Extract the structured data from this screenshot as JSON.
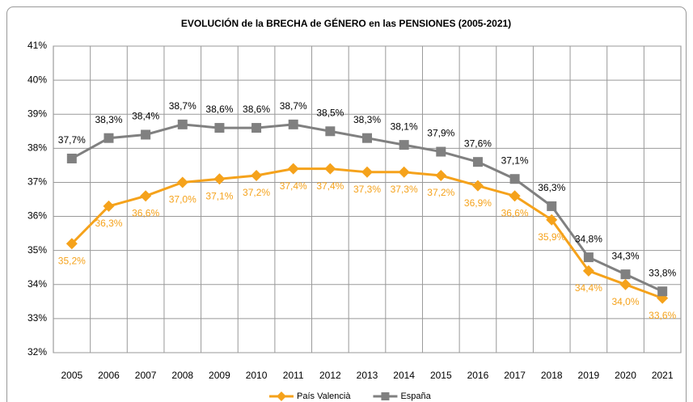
{
  "chart_data": {
    "type": "line",
    "title": "EVOLUCIÓN de la BRECHA de GÉNERO en las PENSIONES (2005-2021)",
    "categories": [
      "2005",
      "2006",
      "2007",
      "2008",
      "2009",
      "2010",
      "2011",
      "2012",
      "2013",
      "2014",
      "2015",
      "2016",
      "2017",
      "2018",
      "2019",
      "2020",
      "2021"
    ],
    "series": [
      {
        "name": "País Valencià",
        "color": "#f5a21b",
        "marker": "diamond",
        "label_position": "below",
        "values": [
          35.2,
          36.3,
          36.6,
          37.0,
          37.1,
          37.2,
          37.4,
          37.4,
          37.3,
          37.3,
          37.2,
          36.9,
          36.6,
          35.9,
          34.4,
          34.0,
          33.6
        ],
        "value_labels": [
          "35,2%",
          "36,3%",
          "36,6%",
          "37,0%",
          "37,1%",
          "37,2%",
          "37,4%",
          "37,4%",
          "37,3%",
          "37,3%",
          "37,2%",
          "36,9%",
          "36,6%",
          "35,9%",
          "34,4%",
          "34,0%",
          "33,6%"
        ]
      },
      {
        "name": "España",
        "color": "#808080",
        "marker": "square",
        "label_position": "above",
        "values": [
          37.7,
          38.3,
          38.4,
          38.7,
          38.6,
          38.6,
          38.7,
          38.5,
          38.3,
          38.1,
          37.9,
          37.6,
          37.1,
          36.3,
          34.8,
          34.3,
          33.8
        ],
        "value_labels": [
          "37,7%",
          "38,3%",
          "38,4%",
          "38,7%",
          "38,6%",
          "38,6%",
          "38,7%",
          "38,5%",
          "38,3%",
          "38,1%",
          "37,9%",
          "37,6%",
          "37,1%",
          "36,3%",
          "34,8%",
          "34,3%",
          "33,8%"
        ]
      }
    ],
    "ylim": [
      32,
      41
    ],
    "yticks": [
      {
        "value": 32,
        "label": "32%"
      },
      {
        "value": 33,
        "label": "33%"
      },
      {
        "value": 34,
        "label": "34%"
      },
      {
        "value": 35,
        "label": "35%"
      },
      {
        "value": 36,
        "label": "36%"
      },
      {
        "value": 37,
        "label": "37%"
      },
      {
        "value": 38,
        "label": "38%"
      },
      {
        "value": 39,
        "label": "39%"
      },
      {
        "value": 40,
        "label": "40%"
      },
      {
        "value": 41,
        "label": "41%"
      }
    ],
    "grid": true,
    "legend": "bottom"
  }
}
